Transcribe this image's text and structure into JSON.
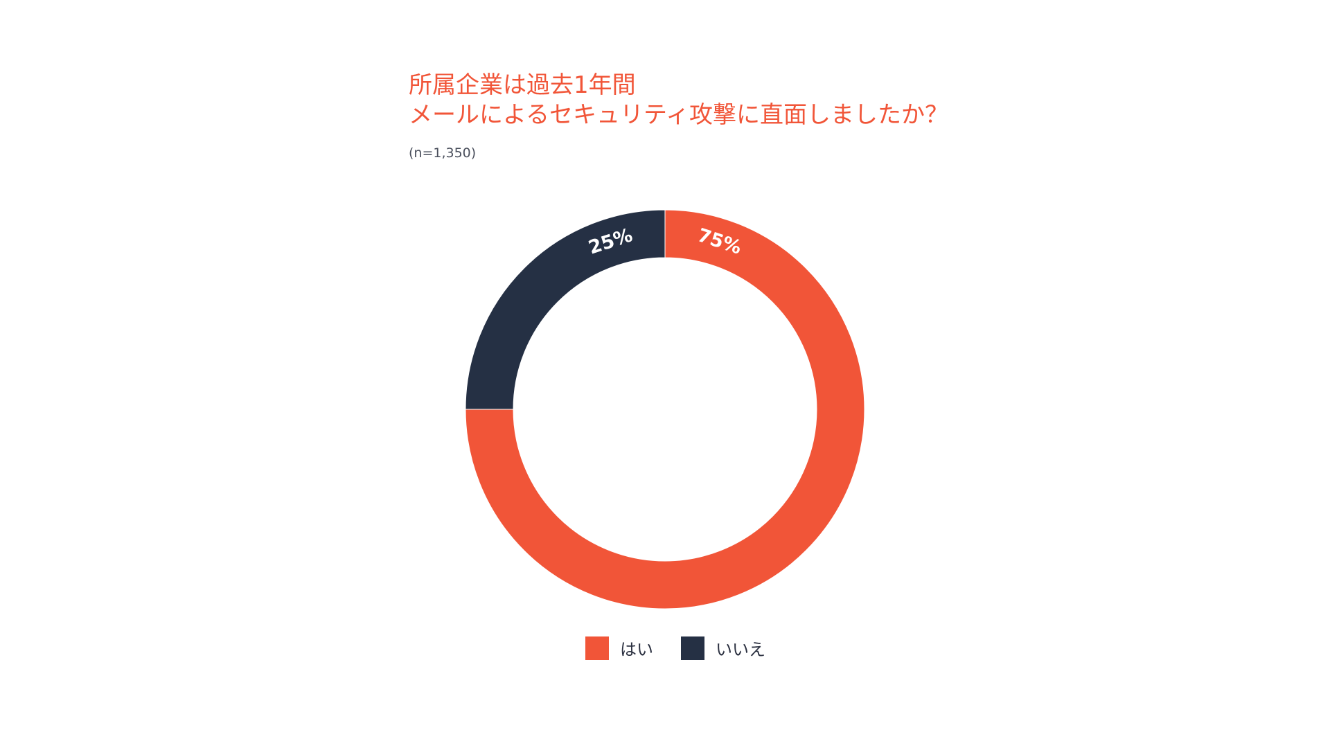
{
  "chart_data": {
    "type": "pie",
    "variant": "donut",
    "title_lines": [
      "所属企業は過去1年間",
      "メールによるセキュリティ攻撃に直面しましたか？"
    ],
    "sample_size": "(n=1,350)",
    "slices": [
      {
        "name": "はい",
        "value": 75,
        "label": "75%",
        "color": "#F15538"
      },
      {
        "name": "いいえ",
        "value": 25,
        "label": "25%",
        "color": "#253044"
      }
    ],
    "legend_position": "bottom"
  }
}
